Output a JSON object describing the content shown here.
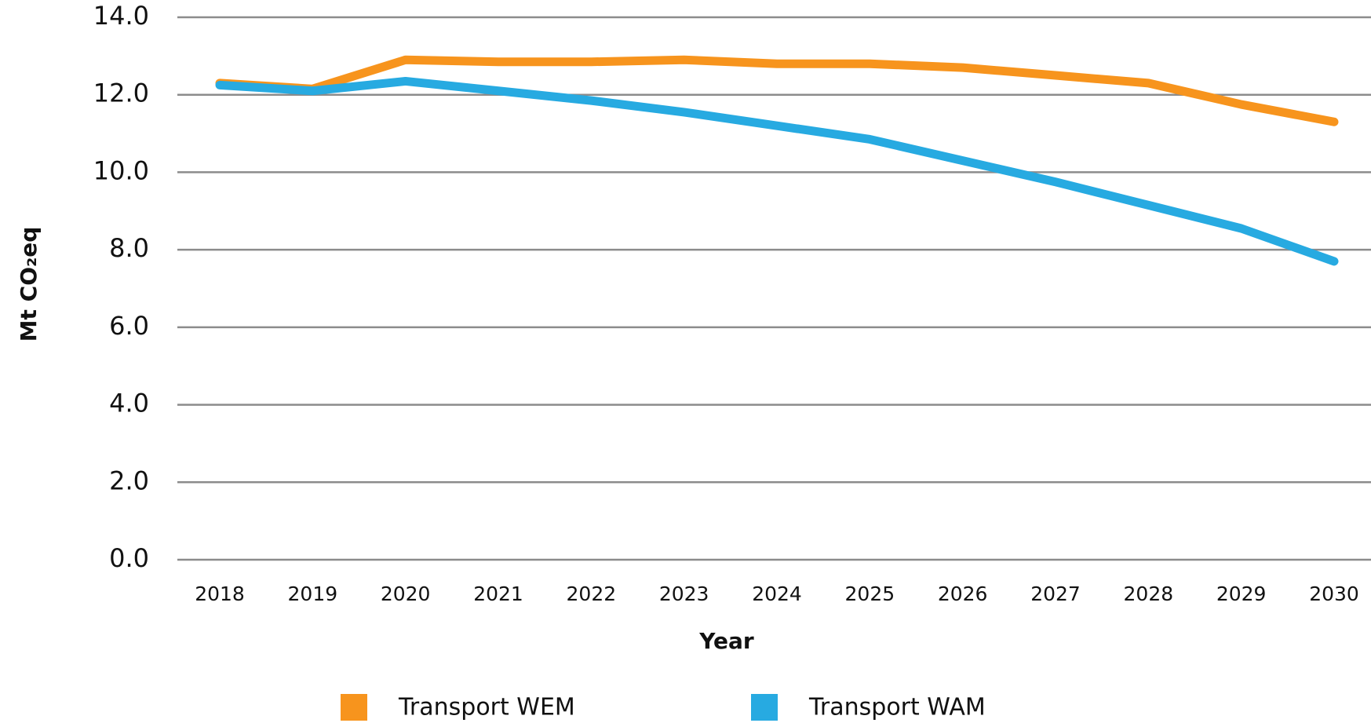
{
  "chart_data": {
    "type": "line",
    "x_label": "Year",
    "y_label": "Mt CO₂eq",
    "categories": [
      "2018",
      "2019",
      "2020",
      "2021",
      "2022",
      "2023",
      "2024",
      "2025",
      "2026",
      "2027",
      "2028",
      "2029",
      "2030"
    ],
    "series": [
      {
        "name": "Transport WEM",
        "color": "#f7941d",
        "values": [
          12.3,
          12.15,
          12.9,
          12.85,
          12.85,
          12.9,
          12.8,
          12.8,
          12.7,
          12.5,
          12.3,
          11.75,
          11.3
        ]
      },
      {
        "name": "Transport WAM",
        "color": "#27aae1",
        "values": [
          12.25,
          12.1,
          12.35,
          12.1,
          11.85,
          11.55,
          11.2,
          10.85,
          10.3,
          9.75,
          9.15,
          8.55,
          7.7
        ]
      }
    ],
    "ylim": [
      0,
      14
    ],
    "yticks": [
      {
        "value": 0,
        "label": "0.0"
      },
      {
        "value": 2,
        "label": "2.0"
      },
      {
        "value": 4,
        "label": "4.0"
      },
      {
        "value": 6,
        "label": "6.0"
      },
      {
        "value": 8,
        "label": "8.0"
      },
      {
        "value": 10,
        "label": "10.0"
      },
      {
        "value": 12,
        "label": "12.0"
      },
      {
        "value": 14,
        "label": "14.0"
      }
    ],
    "grid": true
  }
}
